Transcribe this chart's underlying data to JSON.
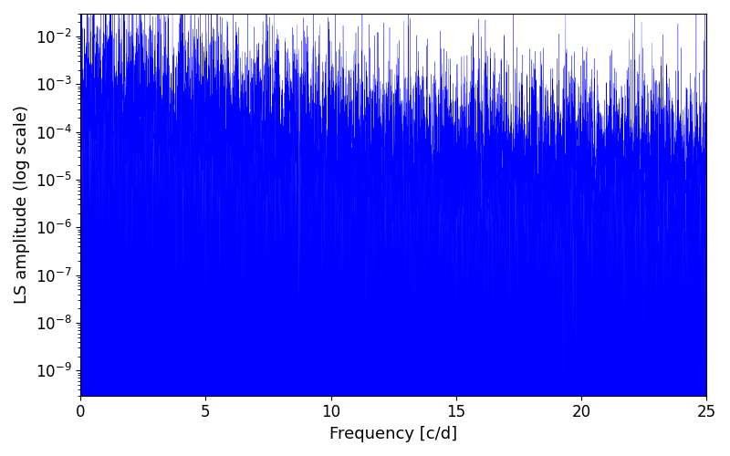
{
  "xlabel": "Frequency [c/d]",
  "ylabel": "LS amplitude (log scale)",
  "xlim": [
    0,
    25
  ],
  "ylim": [
    3e-10,
    0.03
  ],
  "line_color": "#0000FF",
  "background_color": "#ffffff",
  "figsize": [
    8.0,
    5.0
  ],
  "dpi": 100,
  "seed": 12345,
  "n_points": 8000,
  "tick_label_size": 12,
  "axis_label_size": 13
}
